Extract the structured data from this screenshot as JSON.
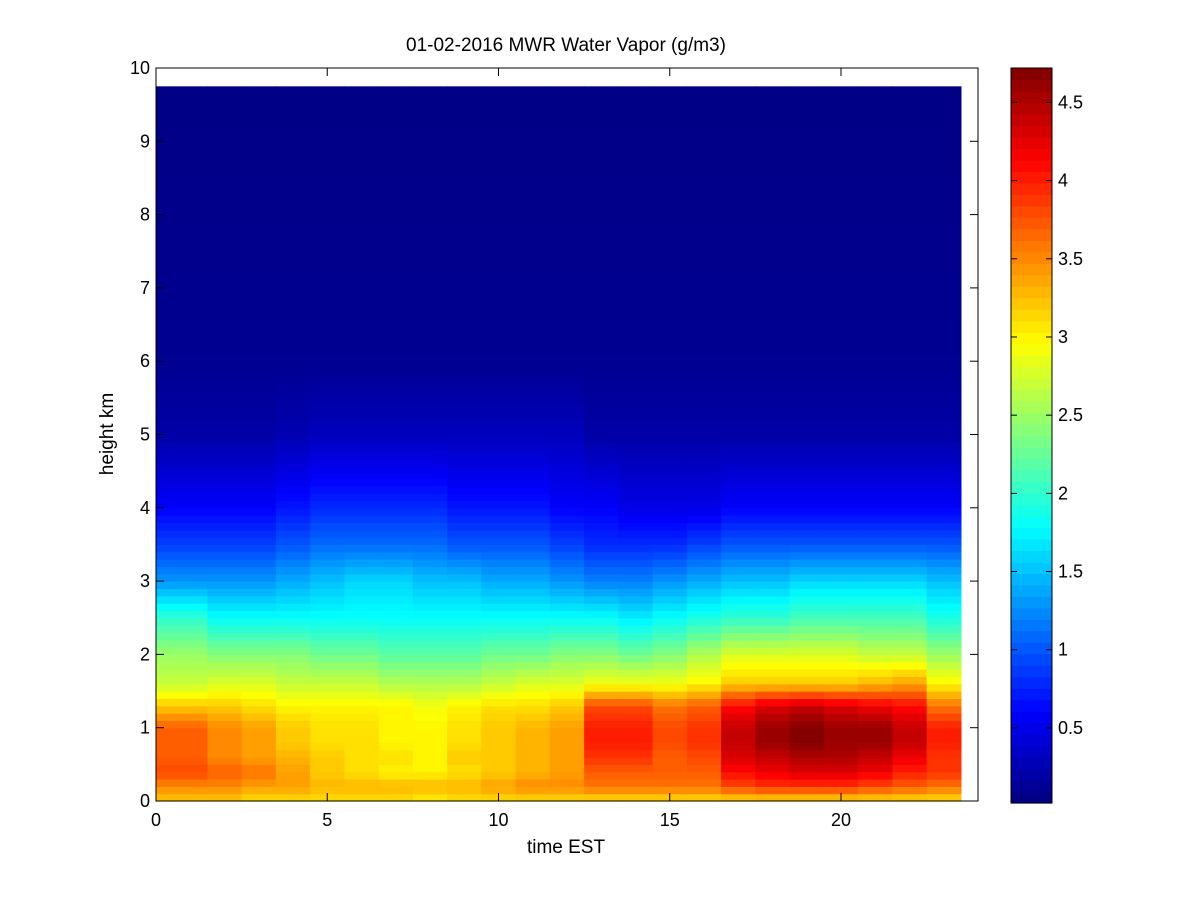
{
  "chart_data": {
    "type": "heatmap",
    "title": "01-02-2016 MWR Water Vapor (g/m3)",
    "xlabel": "time EST",
    "ylabel": "height km",
    "xlim": [
      0,
      24
    ],
    "ylim": [
      0,
      10
    ],
    "x_ticks": [
      "0",
      "5",
      "10",
      "15",
      "20"
    ],
    "y_ticks": [
      "0",
      "1",
      "2",
      "3",
      "4",
      "5",
      "6",
      "7",
      "8",
      "9",
      "10"
    ],
    "colormap": "jet",
    "colorbar": {
      "range": [
        0.02,
        4.72
      ],
      "ticks": [
        "0.5",
        "1",
        "1.5",
        "2",
        "2.5",
        "3",
        "3.5",
        "4",
        "4.5"
      ]
    },
    "time_hours": [
      0,
      1,
      2,
      3,
      4,
      5,
      6,
      7,
      8,
      9,
      10,
      11,
      12,
      13,
      14,
      15,
      16,
      17,
      18,
      19,
      20,
      21,
      22,
      23
    ],
    "data_top_km": 9.75,
    "no_data_above_hour": 23.5,
    "profile_heights_km": [
      0.0,
      0.2,
      0.4,
      0.6,
      0.8,
      1.0,
      1.3,
      1.6,
      2.0,
      2.5,
      3.0,
      3.5,
      4.0,
      5.0,
      6.0,
      9.75
    ],
    "profiles_g_m3": [
      [
        3.2,
        3.5,
        3.8,
        3.7,
        3.7,
        3.7,
        3.2,
        2.7,
        2.5,
        2.0,
        1.3,
        0.9,
        0.6,
        0.2,
        0.1,
        0.05
      ],
      [
        3.2,
        3.5,
        3.8,
        3.7,
        3.7,
        3.7,
        3.2,
        2.7,
        2.5,
        2.0,
        1.3,
        0.9,
        0.6,
        0.2,
        0.1,
        0.05
      ],
      [
        3.2,
        3.5,
        3.7,
        3.5,
        3.5,
        3.5,
        3.2,
        2.8,
        2.4,
        1.8,
        1.3,
        0.9,
        0.6,
        0.2,
        0.1,
        0.05
      ],
      [
        3.1,
        3.4,
        3.6,
        3.4,
        3.4,
        3.4,
        3.1,
        2.8,
        2.4,
        1.8,
        1.3,
        0.9,
        0.6,
        0.2,
        0.1,
        0.05
      ],
      [
        3.1,
        3.4,
        3.4,
        3.3,
        3.2,
        3.2,
        3.0,
        2.7,
        2.4,
        1.8,
        1.4,
        1.0,
        0.7,
        0.25,
        0.1,
        0.05
      ],
      [
        3.1,
        3.3,
        3.2,
        3.2,
        3.1,
        3.1,
        3.0,
        2.7,
        2.3,
        1.8,
        1.5,
        1.1,
        0.8,
        0.3,
        0.1,
        0.05
      ],
      [
        3.1,
        3.3,
        3.1,
        3.1,
        3.1,
        3.1,
        3.0,
        2.7,
        2.3,
        1.8,
        1.6,
        1.1,
        0.8,
        0.3,
        0.1,
        0.05
      ],
      [
        3.1,
        3.3,
        3.0,
        3.1,
        3.0,
        3.0,
        3.0,
        2.6,
        2.2,
        1.8,
        1.6,
        1.1,
        0.8,
        0.3,
        0.1,
        0.05
      ],
      [
        3.0,
        3.3,
        3.0,
        3.0,
        3.0,
        3.0,
        2.9,
        2.6,
        2.2,
        1.8,
        1.5,
        1.1,
        0.8,
        0.3,
        0.1,
        0.05
      ],
      [
        3.1,
        3.3,
        3.1,
        3.2,
        3.1,
        3.1,
        3.0,
        2.6,
        2.2,
        1.8,
        1.5,
        1.0,
        0.7,
        0.3,
        0.1,
        0.05
      ],
      [
        3.1,
        3.4,
        3.2,
        3.2,
        3.2,
        3.2,
        3.1,
        2.7,
        2.3,
        1.8,
        1.4,
        1.0,
        0.7,
        0.3,
        0.1,
        0.05
      ],
      [
        3.1,
        3.5,
        3.3,
        3.3,
        3.3,
        3.3,
        3.1,
        2.8,
        2.3,
        1.8,
        1.4,
        1.0,
        0.7,
        0.3,
        0.1,
        0.05
      ],
      [
        3.1,
        3.5,
        3.4,
        3.4,
        3.4,
        3.4,
        3.2,
        2.8,
        2.4,
        1.8,
        1.3,
        0.9,
        0.6,
        0.3,
        0.1,
        0.05
      ],
      [
        3.1,
        3.6,
        3.7,
        3.9,
        4.0,
        4.0,
        3.8,
        2.9,
        2.4,
        1.8,
        1.2,
        0.8,
        0.6,
        0.2,
        0.1,
        0.05
      ],
      [
        3.1,
        3.6,
        3.7,
        3.9,
        4.0,
        4.0,
        3.8,
        2.9,
        2.3,
        1.7,
        1.2,
        0.8,
        0.5,
        0.2,
        0.1,
        0.05
      ],
      [
        3.1,
        3.6,
        3.7,
        3.7,
        3.8,
        3.8,
        3.6,
        2.9,
        2.4,
        1.8,
        1.3,
        0.8,
        0.5,
        0.2,
        0.1,
        0.05
      ],
      [
        3.1,
        3.6,
        3.7,
        3.8,
        3.9,
        3.9,
        3.7,
        3.0,
        2.6,
        1.9,
        1.4,
        0.9,
        0.5,
        0.2,
        0.1,
        0.05
      ],
      [
        3.1,
        3.8,
        4.1,
        4.3,
        4.4,
        4.4,
        4.1,
        3.2,
        2.8,
        2.0,
        1.5,
        1.0,
        0.6,
        0.2,
        0.1,
        0.05
      ],
      [
        3.1,
        3.9,
        4.2,
        4.4,
        4.6,
        4.6,
        4.3,
        3.2,
        2.8,
        2.0,
        1.5,
        1.0,
        0.6,
        0.2,
        0.1,
        0.05
      ],
      [
        3.1,
        3.9,
        4.3,
        4.5,
        4.7,
        4.7,
        4.4,
        3.2,
        2.8,
        2.1,
        1.6,
        1.0,
        0.6,
        0.2,
        0.1,
        0.05
      ],
      [
        3.1,
        3.9,
        4.3,
        4.5,
        4.6,
        4.6,
        4.3,
        3.2,
        2.8,
        2.1,
        1.6,
        1.0,
        0.6,
        0.2,
        0.1,
        0.05
      ],
      [
        3.1,
        3.8,
        4.2,
        4.4,
        4.6,
        4.6,
        4.2,
        3.3,
        2.7,
        2.1,
        1.6,
        1.0,
        0.6,
        0.2,
        0.1,
        0.05
      ],
      [
        3.1,
        3.7,
        4.0,
        4.2,
        4.4,
        4.4,
        4.1,
        3.4,
        2.7,
        2.1,
        1.6,
        1.0,
        0.6,
        0.2,
        0.1,
        0.05
      ],
      [
        3.1,
        3.6,
        3.9,
        3.9,
        4.0,
        4.0,
        3.6,
        3.0,
        2.5,
        1.9,
        1.5,
        1.0,
        0.6,
        0.2,
        0.1,
        0.05
      ]
    ]
  }
}
